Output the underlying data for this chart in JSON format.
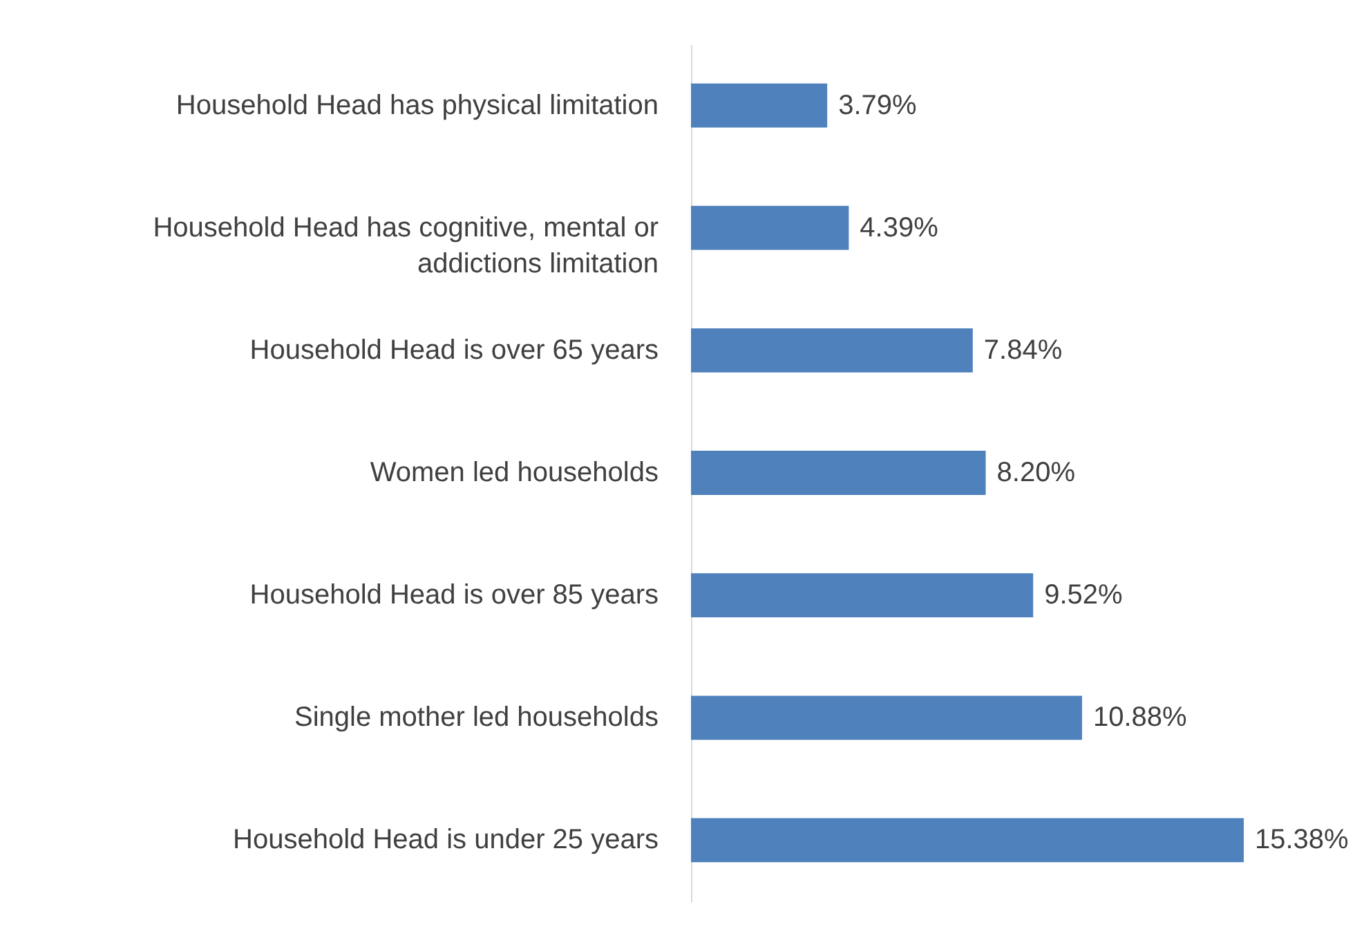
{
  "chart_data": {
    "type": "bar",
    "orientation": "horizontal",
    "categories": [
      "Household Head has physical limitation",
      "Household Head has cognitive, mental or addictions limitation",
      "Household Head is over 65 years",
      "Women led households",
      "Household Head is over 85 years",
      "Single mother led households",
      "Household Head is under 25 years"
    ],
    "values": [
      3.79,
      4.39,
      7.84,
      8.2,
      9.52,
      10.88,
      15.38
    ],
    "value_labels": [
      "3.79%",
      "4.39%",
      "7.84%",
      "8.20%",
      "9.52%",
      "10.88%",
      "15.38%"
    ],
    "color": "#4f81bd"
  }
}
